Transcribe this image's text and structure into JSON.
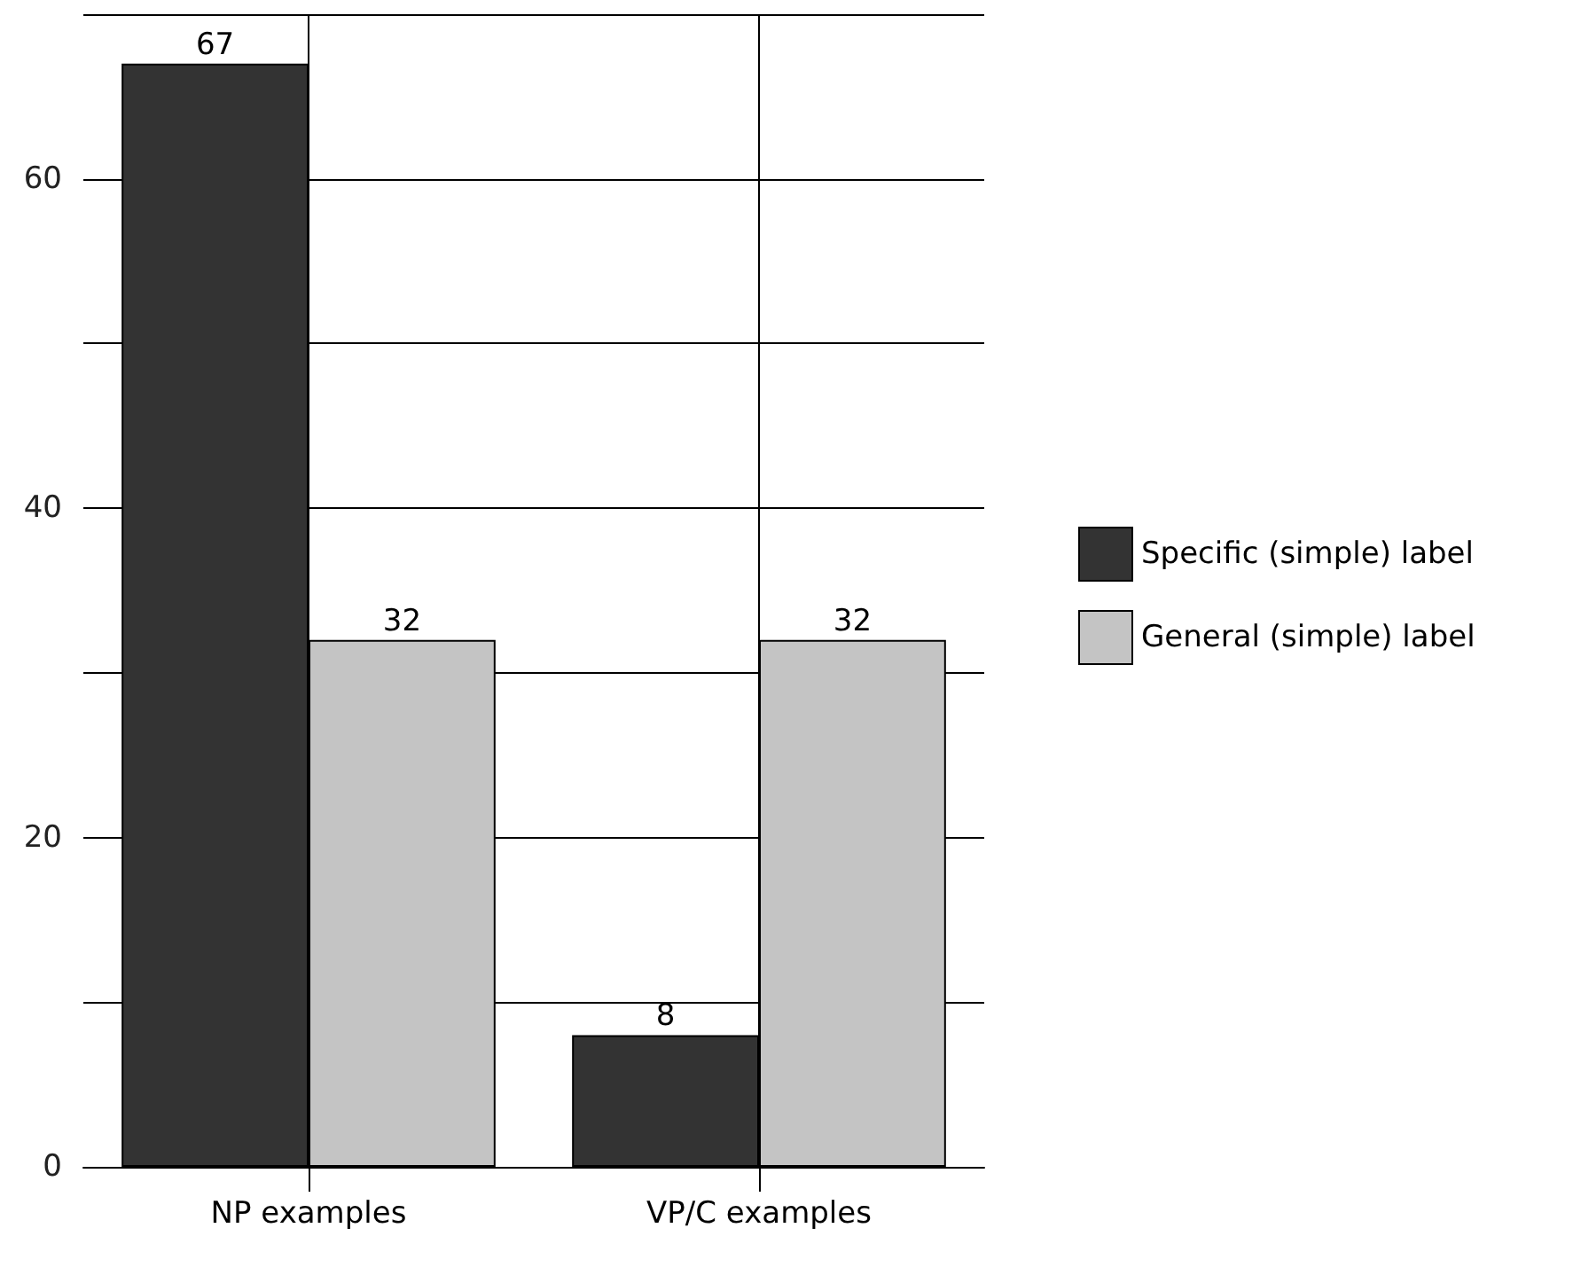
{
  "chart_data": {
    "type": "bar",
    "categories": [
      "NP examples",
      "VP/C examples"
    ],
    "series": [
      {
        "name": "Specific (simple) label",
        "color": "#333333",
        "values": [
          67,
          8
        ]
      },
      {
        "name": "General (simple) label",
        "color": "#c4c4c4",
        "values": [
          32,
          32
        ]
      }
    ],
    "ylim": [
      0,
      70
    ],
    "yticks": [
      0,
      {
        "value": 10,
        "label": null
      },
      20,
      {
        "value": 30,
        "label": null
      },
      40,
      {
        "value": 50,
        "label": null
      },
      60,
      {
        "value": 70,
        "label": null
      }
    ],
    "grid": true,
    "legend": "right",
    "data_labels": true
  }
}
